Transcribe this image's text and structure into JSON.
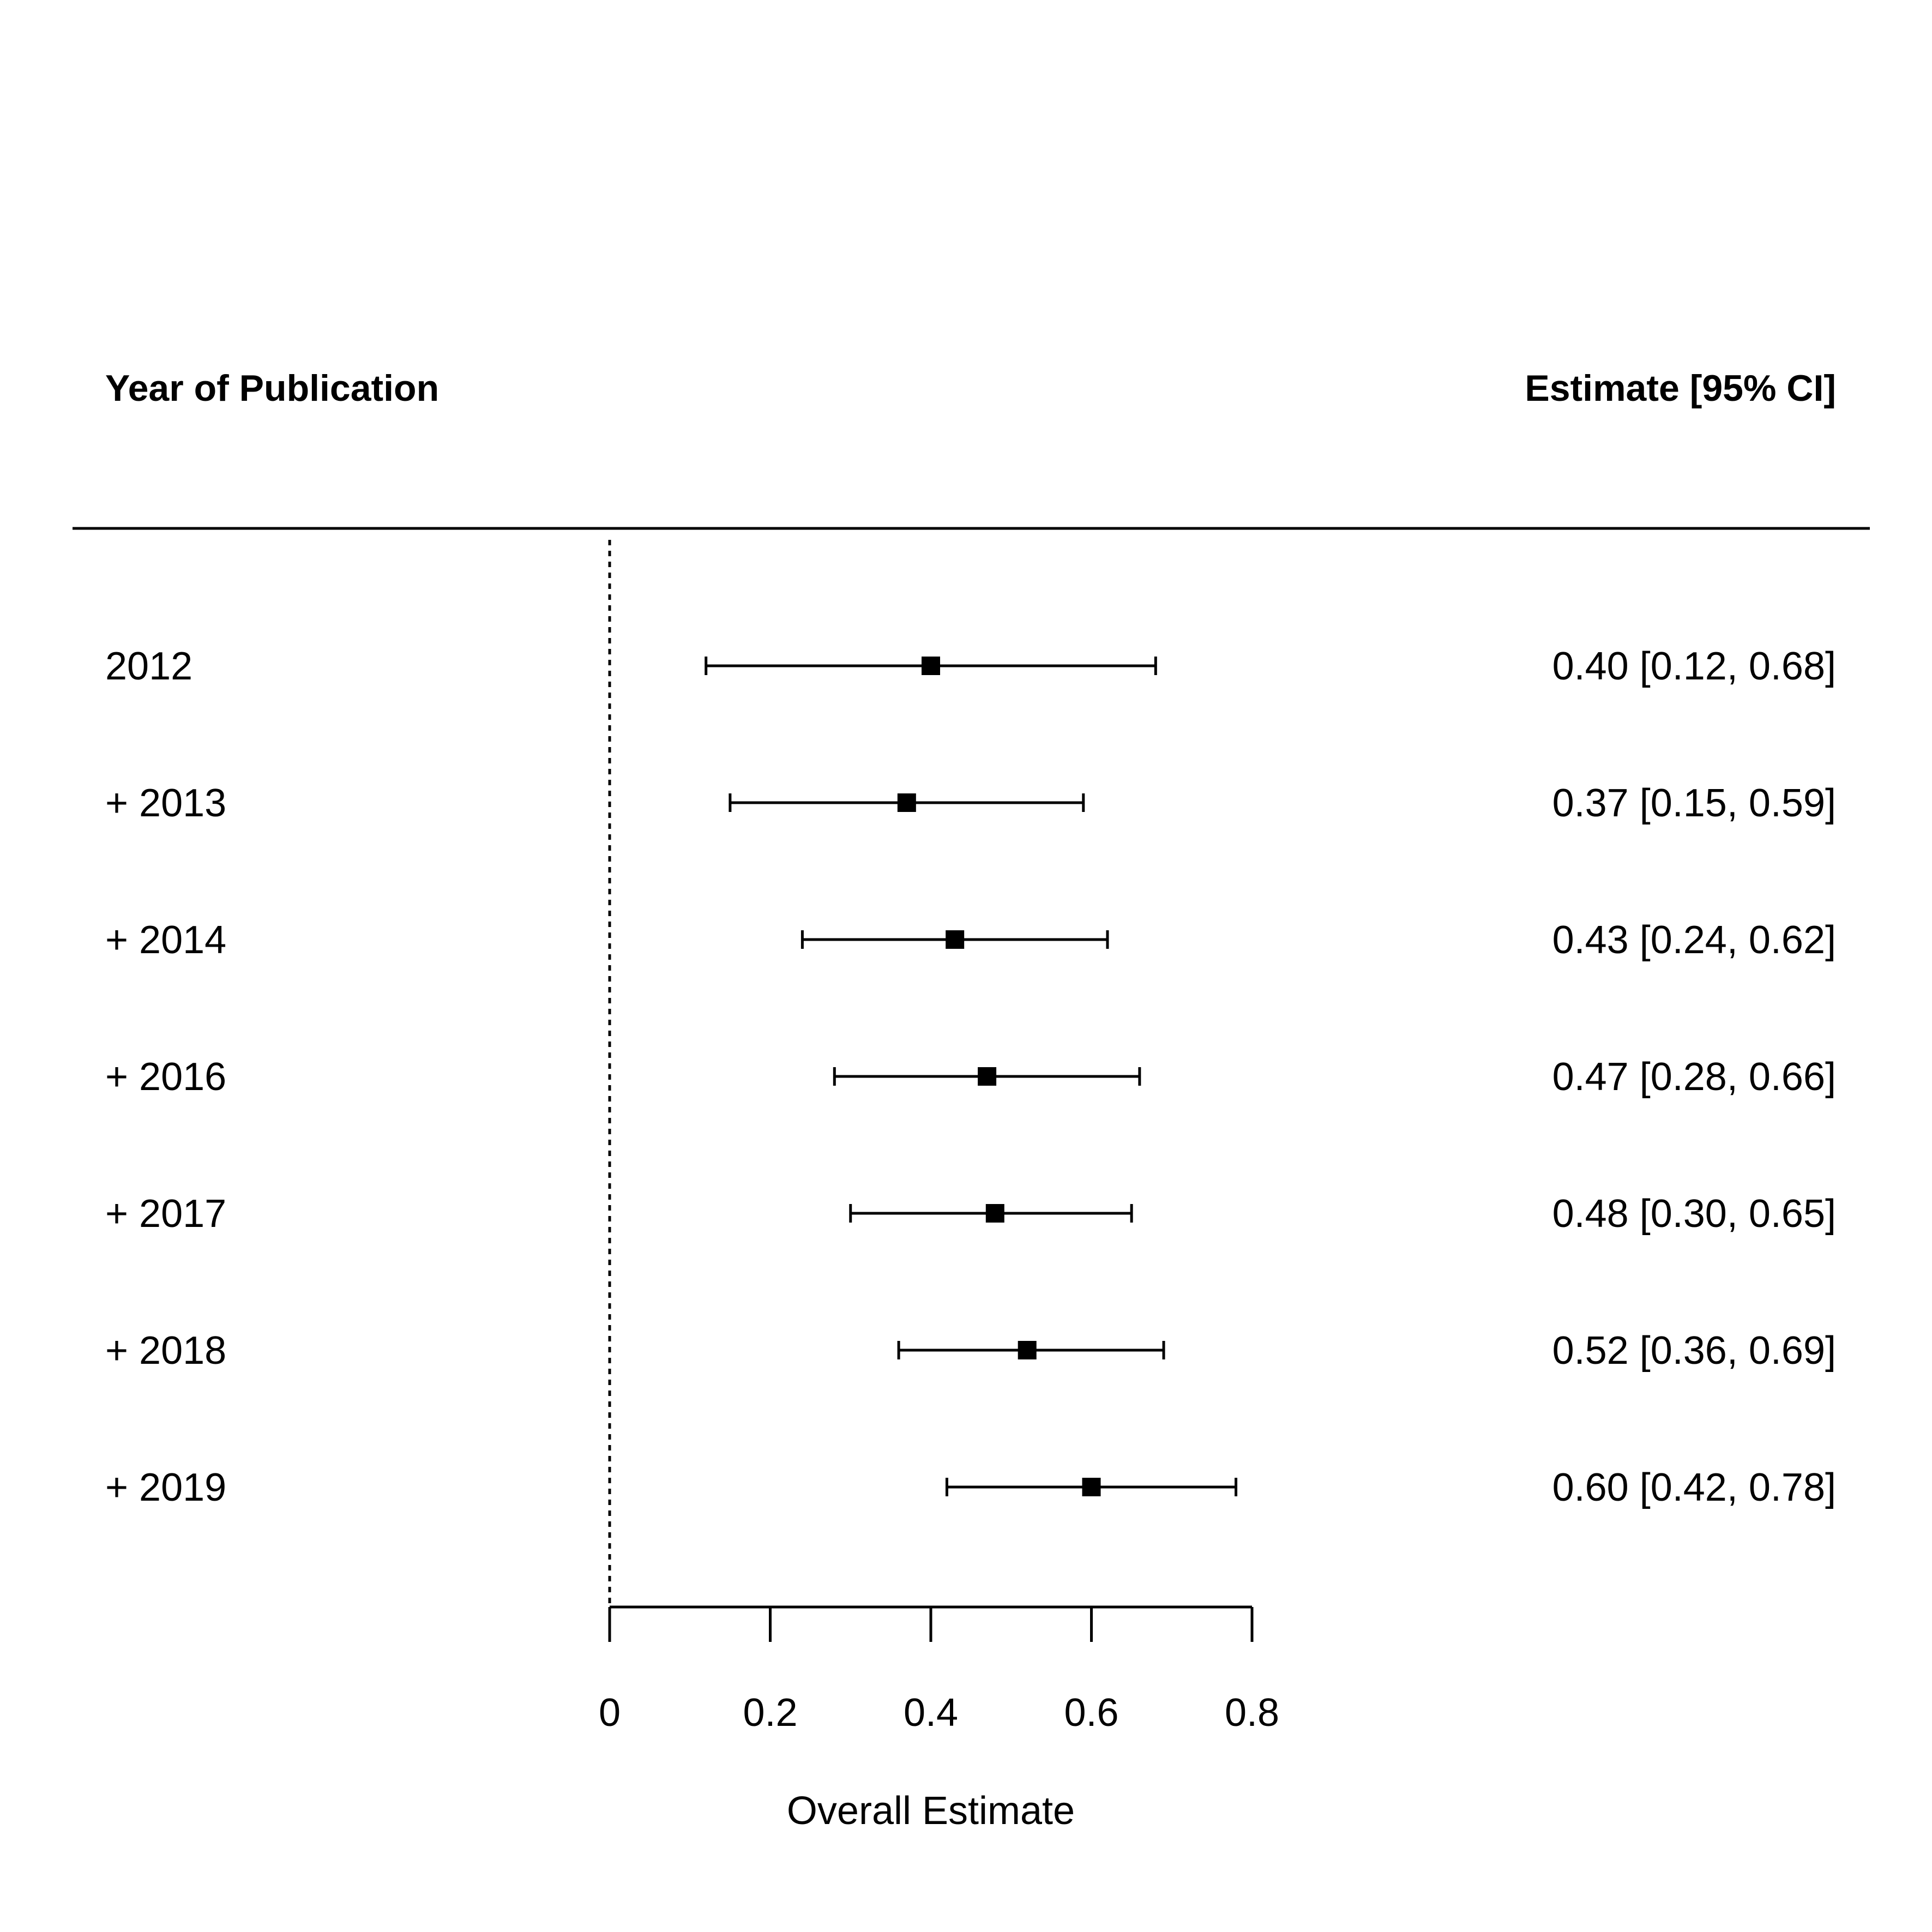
{
  "chart_data": {
    "type": "forest",
    "left_header": "Year of Publication",
    "right_header": "Estimate [95% CI]",
    "xlabel": "Overall Estimate",
    "xlim": [
      0,
      0.8
    ],
    "ticks": [
      "0",
      "0.2",
      "0.4",
      "0.6",
      "0.8"
    ],
    "tick_values": [
      0,
      0.2,
      0.4,
      0.6,
      0.8
    ],
    "reference_line": 0,
    "rows": [
      {
        "label": "2012",
        "estimate": 0.4,
        "lower": 0.12,
        "upper": 0.68,
        "text": "0.40 [0.12, 0.68]"
      },
      {
        "label": "+ 2013",
        "estimate": 0.37,
        "lower": 0.15,
        "upper": 0.59,
        "text": "0.37 [0.15, 0.59]"
      },
      {
        "label": "+ 2014",
        "estimate": 0.43,
        "lower": 0.24,
        "upper": 0.62,
        "text": "0.43 [0.24, 0.62]"
      },
      {
        "label": "+ 2016",
        "estimate": 0.47,
        "lower": 0.28,
        "upper": 0.66,
        "text": "0.47 [0.28, 0.66]"
      },
      {
        "label": "+ 2017",
        "estimate": 0.48,
        "lower": 0.3,
        "upper": 0.65,
        "text": "0.48 [0.30, 0.65]"
      },
      {
        "label": "+ 2018",
        "estimate": 0.52,
        "lower": 0.36,
        "upper": 0.69,
        "text": "0.52 [0.36, 0.69]"
      },
      {
        "label": "+ 2019",
        "estimate": 0.6,
        "lower": 0.42,
        "upper": 0.78,
        "text": "0.60 [0.42, 0.78]"
      }
    ]
  }
}
